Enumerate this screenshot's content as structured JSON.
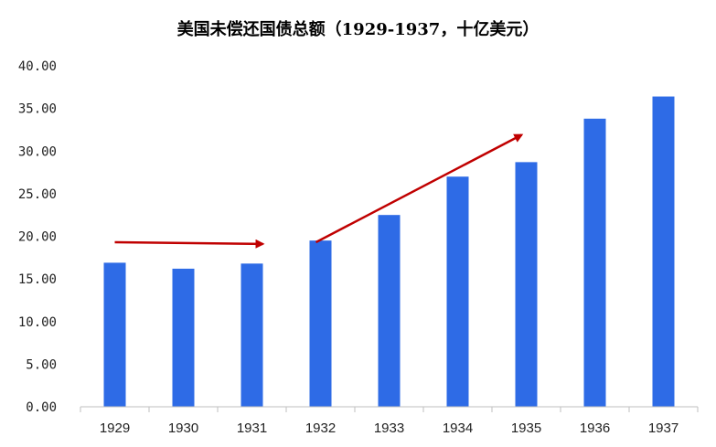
{
  "chart_data": {
    "type": "bar",
    "title": "美国未偿还国债总额（1929-1937，十亿美元）",
    "categories": [
      "1929",
      "1930",
      "1931",
      "1932",
      "1933",
      "1934",
      "1935",
      "1936",
      "1937"
    ],
    "values": [
      16.9,
      16.2,
      16.8,
      19.5,
      22.5,
      27.0,
      28.7,
      33.8,
      36.4
    ],
    "ylim": [
      0,
      40
    ],
    "yticks": [
      "0.00",
      "5.00",
      "10.00",
      "15.00",
      "20.00",
      "25.00",
      "30.00",
      "35.00",
      "40.00"
    ],
    "grid": false,
    "legend": "none",
    "bar_color": "#2E6BE6",
    "annotations": [
      {
        "type": "arrow",
        "from": {
          "x": "1929",
          "y": 19.3
        },
        "to": {
          "x": "1931",
          "y": 19.1
        },
        "color": "#C00000"
      },
      {
        "type": "arrow",
        "from": {
          "x": "1932",
          "y": 19.3
        },
        "to": {
          "x": "1935",
          "y": 31.9
        },
        "color": "#C00000"
      }
    ]
  }
}
